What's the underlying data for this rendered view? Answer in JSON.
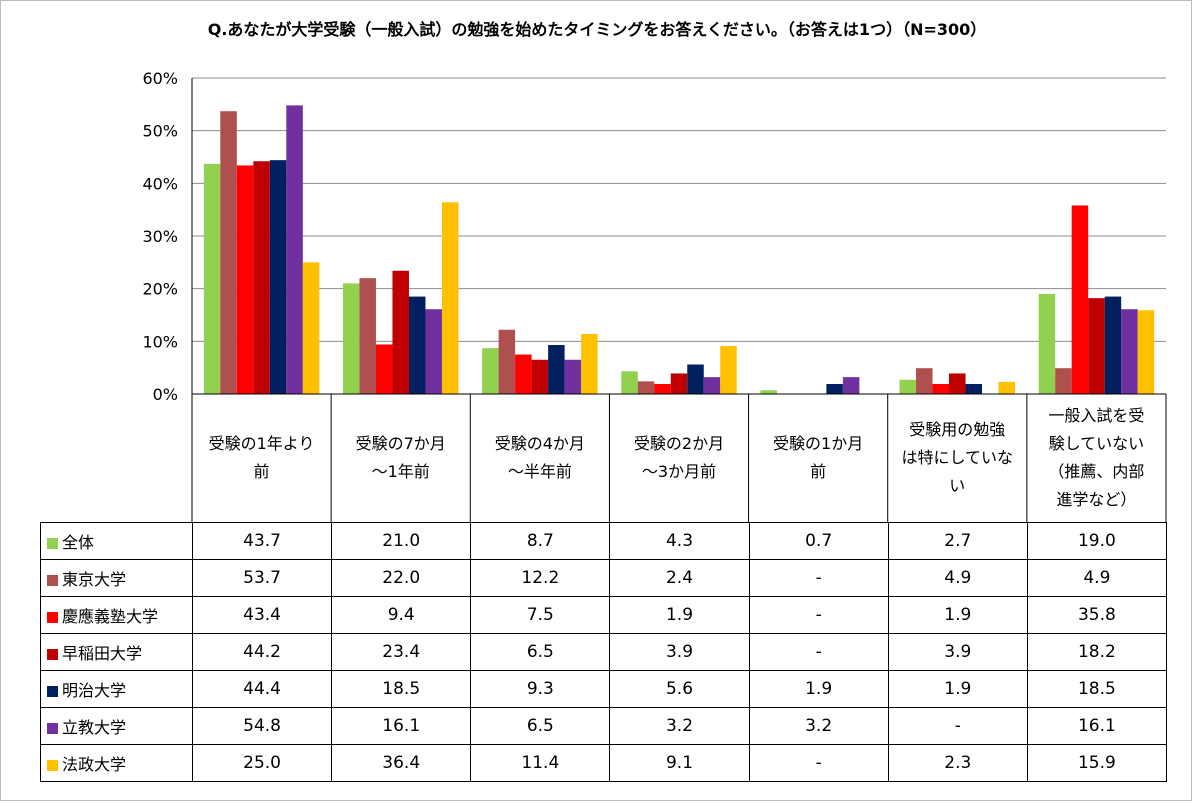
{
  "chart_data": {
    "type": "bar",
    "title": "Q.あなたが大学受験（一般入試）の勉強を始めたタイミングをお答えください。（お答えは1つ）（N=300）",
    "categories": [
      [
        "受験の1年より",
        "前"
      ],
      [
        "受験の7か月",
        "～1年前"
      ],
      [
        "受験の4か月",
        "～半年前"
      ],
      [
        "受験の2か月",
        "～3か月前"
      ],
      [
        "受験の1か月",
        "前"
      ],
      [
        "受験用の勉強",
        "は特にしていな",
        "い"
      ],
      [
        "一般入試を受",
        "験していない",
        "（推薦、内部",
        "進学など）"
      ]
    ],
    "ylim": [
      0,
      60
    ],
    "yticks": [
      "0%",
      "10%",
      "20%",
      "30%",
      "40%",
      "50%",
      "60%"
    ],
    "grid": true,
    "series": [
      {
        "name": "全体",
        "color": "#92d050",
        "values": [
          43.7,
          21.0,
          8.7,
          4.3,
          0.7,
          2.7,
          19.0
        ],
        "labels": [
          "43.7",
          "21.0",
          "8.7",
          "4.3",
          "0.7",
          "2.7",
          "19.0"
        ]
      },
      {
        "name": "東京大学",
        "color": "#b0504e",
        "values": [
          53.7,
          22.0,
          12.2,
          2.4,
          0,
          4.9,
          4.9
        ],
        "labels": [
          "53.7",
          "22.0",
          "12.2",
          "2.4",
          "-",
          "4.9",
          "4.9"
        ]
      },
      {
        "name": "慶應義塾大学",
        "color": "#ff0000",
        "values": [
          43.4,
          9.4,
          7.5,
          1.9,
          0,
          1.9,
          35.8
        ],
        "labels": [
          "43.4",
          "9.4",
          "7.5",
          "1.9",
          "-",
          "1.9",
          "35.8"
        ]
      },
      {
        "name": "早稲田大学",
        "color": "#c00000",
        "values": [
          44.2,
          23.4,
          6.5,
          3.9,
          0,
          3.9,
          18.2
        ],
        "labels": [
          "44.2",
          "23.4",
          "6.5",
          "3.9",
          "-",
          "3.9",
          "18.2"
        ]
      },
      {
        "name": "明治大学",
        "color": "#002060",
        "values": [
          44.4,
          18.5,
          9.3,
          5.6,
          1.9,
          1.9,
          18.5
        ],
        "labels": [
          "44.4",
          "18.5",
          "9.3",
          "5.6",
          "1.9",
          "1.9",
          "18.5"
        ]
      },
      {
        "name": "立教大学",
        "color": "#7030a0",
        "values": [
          54.8,
          16.1,
          6.5,
          3.2,
          3.2,
          0,
          16.1
        ],
        "labels": [
          "54.8",
          "16.1",
          "6.5",
          "3.2",
          "3.2",
          "-",
          "16.1"
        ]
      },
      {
        "name": "法政大学",
        "color": "#ffc000",
        "values": [
          25.0,
          36.4,
          11.4,
          9.1,
          0,
          2.3,
          15.9
        ],
        "labels": [
          "25.0",
          "36.4",
          "11.4",
          "9.1",
          "-",
          "2.3",
          "15.9"
        ]
      }
    ]
  }
}
